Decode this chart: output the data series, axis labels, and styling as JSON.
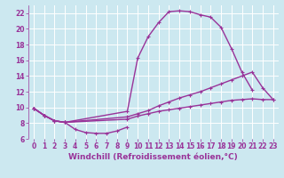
{
  "xlabel": "Windchill (Refroidissement éolien,°C)",
  "bg_color": "#cce8f0",
  "grid_color": "#ffffff",
  "line_color": "#993399",
  "xlim": [
    -0.5,
    23.5
  ],
  "ylim": [
    6,
    23
  ],
  "yticks": [
    6,
    8,
    10,
    12,
    14,
    16,
    18,
    20,
    22
  ],
  "xticks": [
    0,
    1,
    2,
    3,
    4,
    5,
    6,
    7,
    8,
    9,
    10,
    11,
    12,
    13,
    14,
    15,
    16,
    17,
    18,
    19,
    20,
    21,
    22,
    23
  ],
  "curve_bottom_x": [
    0,
    1,
    2,
    3,
    4,
    5,
    6,
    7,
    8,
    9
  ],
  "curve_bottom_y": [
    9.9,
    9.0,
    8.3,
    8.1,
    7.2,
    6.8,
    6.7,
    6.7,
    7.0,
    7.5
  ],
  "curve_top_x": [
    0,
    1,
    2,
    3,
    9,
    10,
    11,
    12,
    13,
    14,
    15,
    16,
    17,
    18,
    19,
    20,
    21
  ],
  "curve_top_y": [
    9.9,
    9.0,
    8.3,
    8.1,
    9.5,
    16.3,
    19.0,
    20.8,
    22.2,
    22.3,
    22.2,
    21.8,
    21.5,
    20.2,
    17.5,
    14.5,
    12.2
  ],
  "curve_mid_x": [
    0,
    1,
    2,
    3,
    9,
    10,
    11,
    12,
    13,
    14,
    15,
    16,
    17,
    18,
    19,
    20,
    21,
    22,
    23
  ],
  "curve_mid_y": [
    9.9,
    9.0,
    8.3,
    8.1,
    8.8,
    9.2,
    9.6,
    10.2,
    10.7,
    11.2,
    11.6,
    12.0,
    12.5,
    13.0,
    13.5,
    14.0,
    14.5,
    12.5,
    11.0
  ],
  "curve_low_x": [
    0,
    1,
    2,
    3,
    9,
    10,
    11,
    12,
    13,
    14,
    15,
    16,
    17,
    18,
    19,
    20,
    21,
    22,
    23
  ],
  "curve_low_y": [
    9.9,
    9.0,
    8.3,
    8.1,
    8.5,
    8.9,
    9.2,
    9.5,
    9.7,
    9.9,
    10.1,
    10.3,
    10.5,
    10.7,
    10.9,
    11.0,
    11.1,
    11.0,
    11.0
  ],
  "marker": "+",
  "markersize": 3,
  "linewidth": 1.0,
  "xlabel_fontsize": 6.5,
  "tick_fontsize": 5.5
}
